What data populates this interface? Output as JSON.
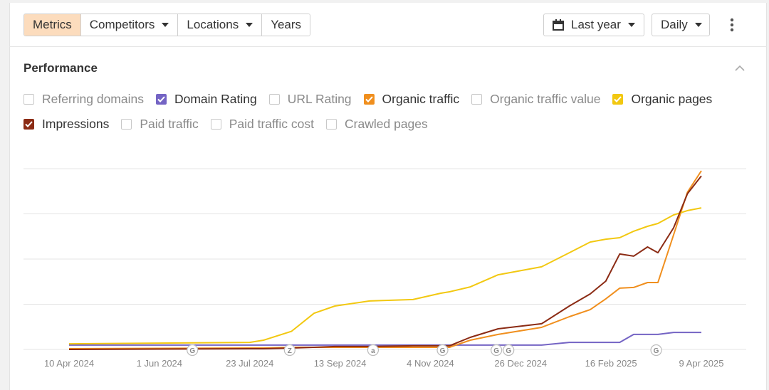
{
  "toolbar": {
    "tabs": [
      {
        "label": "Metrics",
        "active": true,
        "dropdown": false
      },
      {
        "label": "Competitors",
        "active": false,
        "dropdown": true
      },
      {
        "label": "Locations",
        "active": false,
        "dropdown": true
      },
      {
        "label": "Years",
        "active": false,
        "dropdown": false
      }
    ],
    "date_range": "Last year",
    "interval": "Daily"
  },
  "panel": {
    "title": "Performance"
  },
  "chart_data": {
    "type": "line",
    "x": [
      "2024-04-10",
      "2024-07-23",
      "2024-07-31",
      "2024-08-16",
      "2024-08-29",
      "2024-09-10",
      "2024-09-30",
      "2024-10-25",
      "2024-11-10",
      "2024-11-15",
      "2024-11-27",
      "2024-12-13",
      "2025-01-07",
      "2025-01-23",
      "2025-02-04",
      "2025-02-13",
      "2025-02-21",
      "2025-03-01",
      "2025-03-09",
      "2025-03-15",
      "2025-03-24",
      "2025-04-01",
      "2025-04-09"
    ],
    "xlim": [
      "2024-04-10",
      "2025-04-09"
    ],
    "xticks": [
      {
        "value": "2024-04-10",
        "label": "10 Apr 2024"
      },
      {
        "value": "2024-06-01",
        "label": "1 Jun 2024"
      },
      {
        "value": "2024-07-23",
        "label": "23 Jul 2024"
      },
      {
        "value": "2024-09-13",
        "label": "13 Sep 2024"
      },
      {
        "value": "2024-11-04",
        "label": "4 Nov 2024"
      },
      {
        "value": "2024-12-26",
        "label": "26 Dec 2024"
      },
      {
        "value": "2025-02-16",
        "label": "16 Feb 2025"
      },
      {
        "value": "2025-04-09",
        "label": "9 Apr 2025"
      }
    ],
    "ylim": [
      0,
      100
    ],
    "ygrid": [
      0,
      25,
      50,
      75,
      100
    ],
    "series": [
      {
        "name": "Referring domains",
        "checked": false
      },
      {
        "name": "Domain Rating",
        "checked": true,
        "color": "#7464c4",
        "values": [
          2.4,
          2.4,
          2.4,
          2.4,
          2.4,
          2.4,
          2.4,
          2.4,
          2.4,
          2.4,
          2.4,
          2.4,
          2.4,
          3.9,
          3.9,
          3.9,
          3.9,
          8.3,
          8.3,
          8.3,
          9.4,
          9.4,
          9.4
        ]
      },
      {
        "name": "URL Rating",
        "checked": false
      },
      {
        "name": "Organic traffic",
        "checked": true,
        "color": "#f08f1e",
        "values": [
          0.4,
          0.8,
          0.8,
          1.2,
          1.2,
          1.2,
          1.2,
          1.2,
          1.2,
          1.2,
          5.1,
          8.3,
          12.2,
          18.1,
          22,
          28,
          33.9,
          34.3,
          37,
          37,
          63.4,
          87,
          98.8
        ]
      },
      {
        "name": "Organic traffic value",
        "checked": false
      },
      {
        "name": "Organic pages",
        "checked": true,
        "color": "#f2c811",
        "values": [
          3.1,
          3.9,
          5.1,
          10,
          20,
          24,
          26.8,
          27.6,
          31.1,
          31.9,
          34.6,
          41.3,
          45.7,
          53.5,
          59.4,
          61,
          61.8,
          65.4,
          68.1,
          69.7,
          74.4,
          76.8,
          78.3
        ]
      },
      {
        "name": "Impressions",
        "checked": true,
        "color": "#8b2b14",
        "values": [
          0,
          0.4,
          0.4,
          0.8,
          1.2,
          1.6,
          1.6,
          2,
          2,
          2,
          6.7,
          11.4,
          14.2,
          24,
          30.7,
          37.8,
          52.8,
          51.6,
          56.7,
          53.5,
          67.3,
          86.2,
          96
        ]
      },
      {
        "name": "Paid traffic",
        "checked": false
      },
      {
        "name": "Paid traffic cost",
        "checked": false
      },
      {
        "name": "Crawled pages",
        "checked": false
      }
    ],
    "annotations": [
      {
        "x": "2024-06-20",
        "label": "G"
      },
      {
        "x": "2024-08-15",
        "label": "Z"
      },
      {
        "x": "2024-10-02",
        "label": "a"
      },
      {
        "x": "2024-11-11",
        "label": "G"
      },
      {
        "x": "2024-12-12",
        "label": "G"
      },
      {
        "x": "2024-12-19",
        "label": "G"
      },
      {
        "x": "2025-03-14",
        "label": "G"
      }
    ]
  }
}
